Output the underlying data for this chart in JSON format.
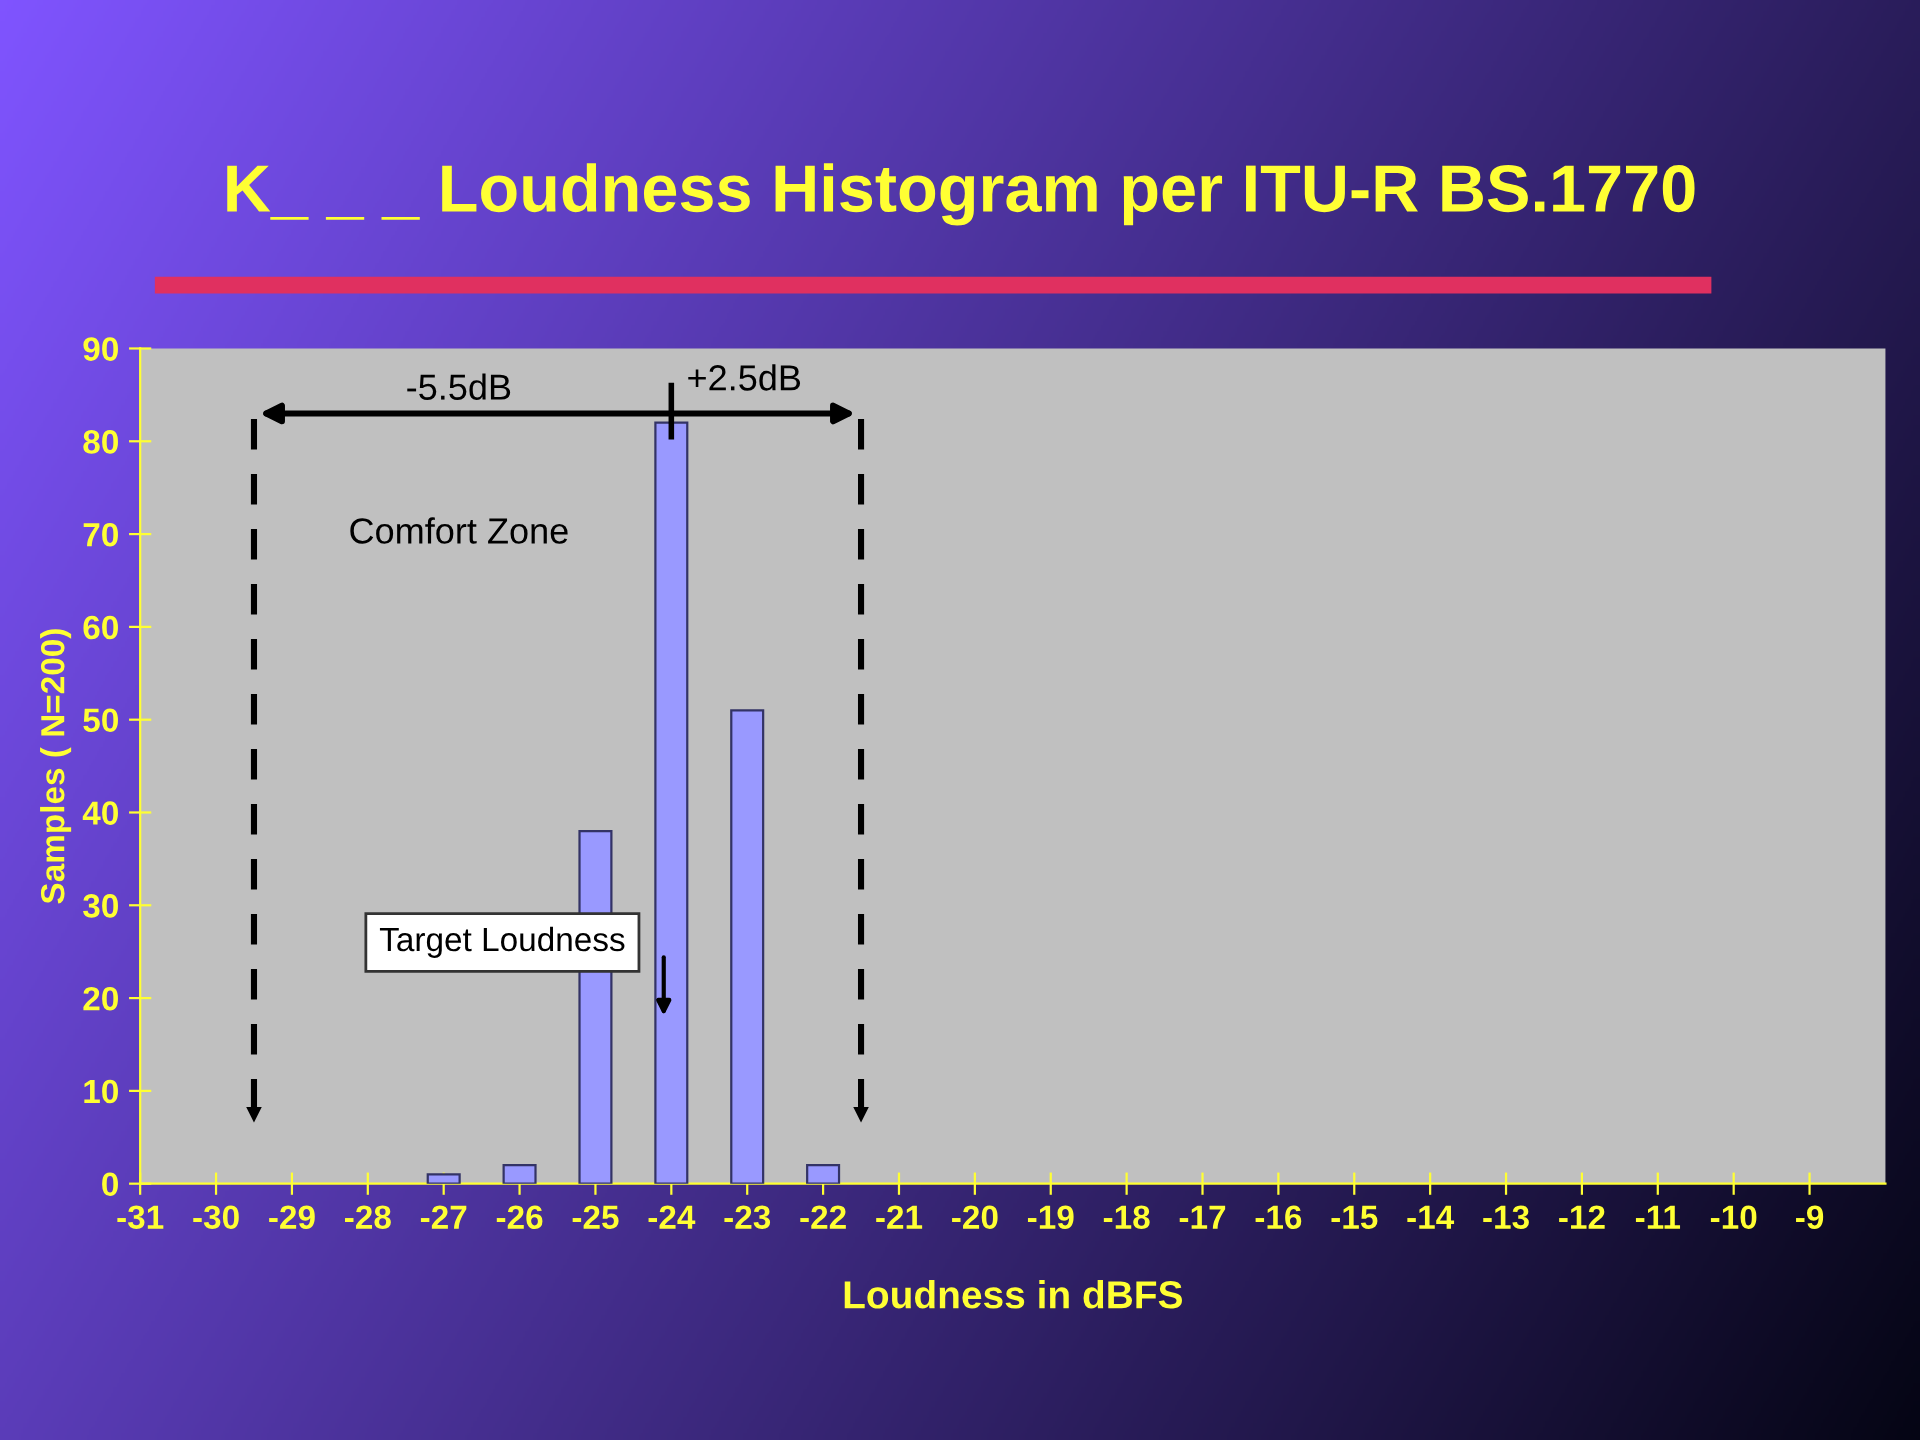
{
  "chart_data": {
    "type": "bar",
    "title": "K_ _ _ Loudness Histogram per ITU-R BS.1770",
    "xlabel": "Loudness in dBFS",
    "ylabel": "Samples ( N=200)",
    "x": [
      -31,
      -30,
      -29,
      -28,
      -27,
      -26,
      -25,
      -24,
      -23,
      -22,
      -21,
      -20,
      -19,
      -18,
      -17,
      -16,
      -15,
      -14,
      -13,
      -12,
      -11,
      -10,
      -9
    ],
    "values": [
      0,
      0,
      0,
      0,
      1,
      2,
      38,
      82,
      51,
      2,
      0,
      0,
      0,
      0,
      0,
      0,
      0,
      0,
      0,
      0,
      0,
      0,
      0
    ],
    "color": "#9999ff",
    "xlim": [
      -31,
      -8
    ],
    "xticks": [
      -31,
      -30,
      -29,
      -28,
      -27,
      -26,
      -25,
      -24,
      -23,
      -22,
      -21,
      -20,
      -19,
      -18,
      -17,
      -16,
      -15,
      -14,
      -13,
      -12,
      -11,
      -10,
      -9
    ],
    "ylim": [
      0,
      90
    ],
    "yticks": [
      0,
      10,
      20,
      30,
      40,
      50,
      60,
      70,
      80,
      90
    ],
    "grid": false,
    "ref_lines": [
      {
        "axis": "x",
        "value": -29.5,
        "color": "#000000",
        "line_style": "dashed"
      },
      {
        "axis": "x",
        "value": -21.5,
        "color": "#000000",
        "line_style": "dashed"
      }
    ],
    "annotations": [
      "-5.5dB",
      "+2.5dB",
      "Comfort Zone",
      "Target Loudness"
    ]
  }
}
